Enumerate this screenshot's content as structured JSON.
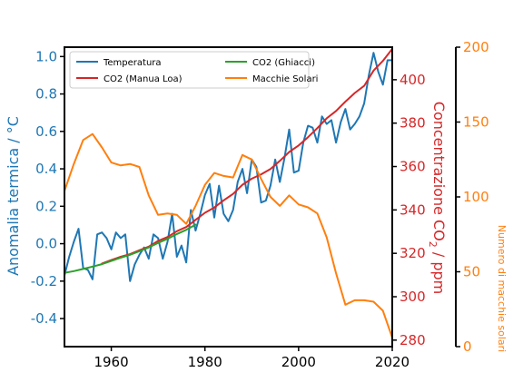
{
  "chart_data": {
    "type": "line",
    "x_range": [
      1950,
      2020
    ],
    "x_ticks": [
      1960,
      1980,
      2000,
      2020
    ],
    "axes": {
      "left": {
        "label": "Anomalia termica / °C",
        "range": [
          -0.55,
          1.05
        ],
        "ticks": [
          -0.4,
          -0.2,
          0.0,
          0.2,
          0.4,
          0.6,
          0.8,
          1.0
        ],
        "tick_labels": [
          "-0.4",
          "-0.2",
          "0.0",
          "0.2",
          "0.4",
          "0.6",
          "0.8",
          "1.0"
        ],
        "color": "#1f77b4"
      },
      "right": {
        "label_prefix": "Concentrazione CO",
        "label_sub": "2",
        "label_suffix": " / ppm",
        "range": [
          277,
          415
        ],
        "ticks": [
          280,
          300,
          320,
          340,
          360,
          380,
          400
        ],
        "tick_labels": [
          "280",
          "300",
          "320",
          "340",
          "360",
          "380",
          "400"
        ],
        "color": "#d62728"
      },
      "third": {
        "label": "Numero di macchie solari",
        "range": [
          0,
          200
        ],
        "ticks": [
          0,
          50,
          100,
          150,
          200
        ],
        "tick_labels": [
          "0",
          "50",
          "100",
          "150",
          "200"
        ],
        "color": "#ff7f0e"
      }
    },
    "legend": {
      "position": "top-left",
      "entries": [
        {
          "label": "Temperatura",
          "color": "#1f77b4"
        },
        {
          "label": "CO2 (Manua Loa)",
          "color": "#d62728"
        },
        {
          "label": "CO2 (Ghiacci)",
          "color": "#2ca02c"
        },
        {
          "label": "Macchie Solari",
          "color": "#ff7f0e"
        }
      ]
    },
    "series": [
      {
        "name": "Temperatura",
        "axis": "left",
        "color": "#1f77b4",
        "x": [
          1950,
          1951,
          1952,
          1953,
          1954,
          1955,
          1956,
          1957,
          1958,
          1959,
          1960,
          1961,
          1962,
          1963,
          1964,
          1965,
          1966,
          1967,
          1968,
          1969,
          1970,
          1971,
          1972,
          1973,
          1974,
          1975,
          1976,
          1977,
          1978,
          1979,
          1980,
          1981,
          1982,
          1983,
          1984,
          1985,
          1986,
          1987,
          1988,
          1989,
          1990,
          1991,
          1992,
          1993,
          1994,
          1995,
          1996,
          1997,
          1998,
          1999,
          2000,
          2001,
          2002,
          2003,
          2004,
          2005,
          2006,
          2007,
          2008,
          2009,
          2010,
          2011,
          2012,
          2013,
          2014,
          2015,
          2016,
          2017,
          2018,
          2019,
          2020
        ],
        "y": [
          -0.17,
          -0.07,
          0.01,
          0.08,
          -0.13,
          -0.14,
          -0.19,
          0.05,
          0.06,
          0.03,
          -0.03,
          0.06,
          0.03,
          0.05,
          -0.2,
          -0.11,
          -0.06,
          -0.02,
          -0.08,
          0.05,
          0.03,
          -0.08,
          0.01,
          0.16,
          -0.07,
          -0.01,
          -0.1,
          0.18,
          0.07,
          0.16,
          0.26,
          0.32,
          0.14,
          0.31,
          0.16,
          0.12,
          0.18,
          0.33,
          0.4,
          0.27,
          0.45,
          0.41,
          0.22,
          0.23,
          0.31,
          0.45,
          0.33,
          0.46,
          0.61,
          0.38,
          0.39,
          0.54,
          0.63,
          0.62,
          0.54,
          0.68,
          0.64,
          0.66,
          0.54,
          0.65,
          0.72,
          0.61,
          0.64,
          0.68,
          0.75,
          0.9,
          1.02,
          0.92,
          0.85,
          0.98,
          0.98
        ]
      },
      {
        "name": "CO2 (Manua Loa)",
        "axis": "right",
        "color": "#d62728",
        "x": [
          1958,
          1960,
          1962,
          1964,
          1966,
          1968,
          1970,
          1972,
          1974,
          1976,
          1978,
          1980,
          1982,
          1984,
          1986,
          1988,
          1990,
          1992,
          1994,
          1996,
          1998,
          2000,
          2002,
          2004,
          2006,
          2008,
          2010,
          2012,
          2014,
          2016,
          2018,
          2020
        ],
        "y": [
          315.3,
          316.9,
          318.4,
          319.6,
          321.4,
          323.1,
          325.7,
          327.5,
          330.2,
          332.1,
          335.4,
          338.7,
          341.1,
          344.4,
          347.4,
          351.6,
          354.4,
          356.4,
          358.9,
          362.6,
          366.7,
          369.7,
          373.5,
          377.7,
          382.2,
          385.6,
          389.9,
          393.9,
          397.2,
          404.2,
          408.7,
          414.2
        ]
      },
      {
        "name": "CO2 (Ghiacci)",
        "axis": "right",
        "color": "#2ca02c",
        "x": [
          1950,
          1952,
          1954,
          1956,
          1958,
          1960,
          1962,
          1964,
          1966,
          1968,
          1970,
          1972,
          1974,
          1976,
          1978
        ],
        "y": [
          311.0,
          311.8,
          312.8,
          313.9,
          315.0,
          316.5,
          318.0,
          319.3,
          321.0,
          322.7,
          324.8,
          326.7,
          328.9,
          330.8,
          333.2
        ]
      },
      {
        "name": "Macchie Solari",
        "axis": "third",
        "color": "#ff7f0e",
        "x": [
          1950,
          1952,
          1954,
          1956,
          1958,
          1960,
          1962,
          1964,
          1966,
          1968,
          1970,
          1972,
          1974,
          1976,
          1978,
          1980,
          1982,
          1984,
          1986,
          1988,
          1990,
          1992,
          1994,
          1996,
          1998,
          2000,
          2002,
          2004,
          2006,
          2008,
          2010,
          2012,
          2014,
          2016,
          2018,
          2020
        ],
        "y": [
          104,
          122,
          138,
          142,
          133,
          123,
          121,
          122,
          120,
          101,
          88,
          89,
          88,
          82,
          94,
          108,
          116,
          114,
          113,
          128,
          125,
          112,
          100,
          94,
          101,
          95,
          93,
          89,
          73,
          49,
          28,
          31,
          31,
          30,
          24,
          6
        ]
      }
    ]
  }
}
